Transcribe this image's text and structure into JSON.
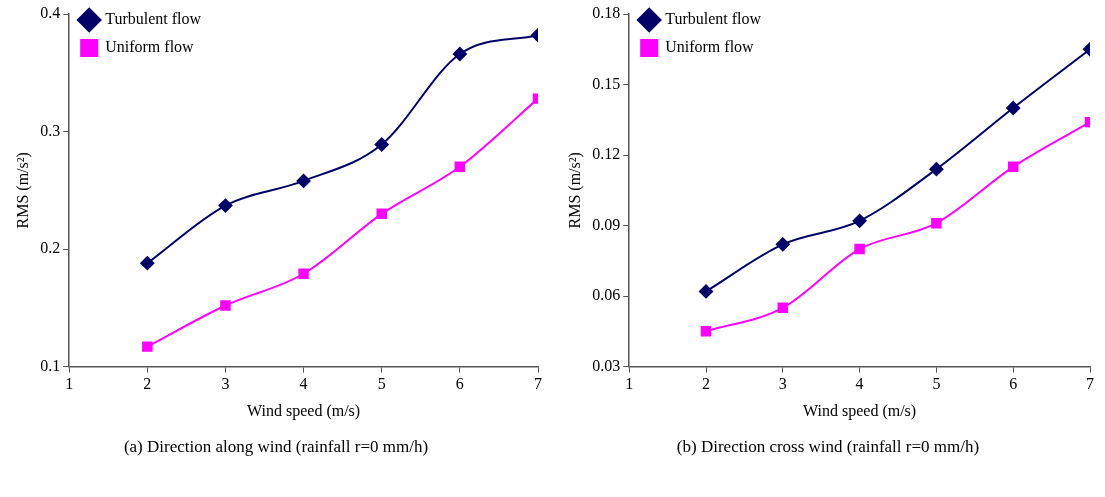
{
  "chart_data": [
    {
      "type": "line",
      "xlabel": "Wind speed (m/s)",
      "ylabel": "RMS (m/s²)",
      "x": [
        2,
        3,
        4,
        5,
        6,
        7
      ],
      "xlim": [
        1,
        7
      ],
      "xticks": [
        1,
        2,
        3,
        4,
        5,
        6,
        7
      ],
      "ylim": [
        0.1,
        0.4
      ],
      "yticks": [
        0.1,
        0.2,
        0.3,
        0.4
      ],
      "grid": false,
      "legend": "top left",
      "annotations": [
        "(a) Direction along wind (rainfall r=0 mm/h)"
      ],
      "series": [
        {
          "name": "Turbulent flow",
          "color": "#000066",
          "marker": "diamond",
          "values": [
            0.188,
            0.237,
            0.258,
            0.289,
            0.366,
            0.382
          ]
        },
        {
          "name": "Uniform flow",
          "color": "#ff00ff",
          "marker": "square",
          "values": [
            0.117,
            0.152,
            0.179,
            0.23,
            0.27,
            0.328
          ]
        }
      ]
    },
    {
      "type": "line",
      "xlabel": "Wind speed (m/s)",
      "ylabel": "RMS (m/s²)",
      "x": [
        2,
        3,
        4,
        5,
        6,
        7
      ],
      "xlim": [
        1,
        7
      ],
      "xticks": [
        1,
        2,
        3,
        4,
        5,
        6,
        7
      ],
      "ylim": [
        0.03,
        0.18
      ],
      "yticks": [
        0.03,
        0.06,
        0.09,
        0.12,
        0.15,
        0.18
      ],
      "grid": false,
      "legend": "top left",
      "annotations": [
        "(b) Direction cross wind (rainfall r=0 mm/h)"
      ],
      "series": [
        {
          "name": "Turbulent flow",
          "color": "#000066",
          "marker": "diamond",
          "values": [
            0.062,
            0.082,
            0.092,
            0.114,
            0.14,
            0.165
          ]
        },
        {
          "name": "Uniform flow",
          "color": "#ff00ff",
          "marker": "square",
          "values": [
            0.045,
            0.055,
            0.08,
            0.091,
            0.115,
            0.134
          ]
        }
      ]
    }
  ]
}
